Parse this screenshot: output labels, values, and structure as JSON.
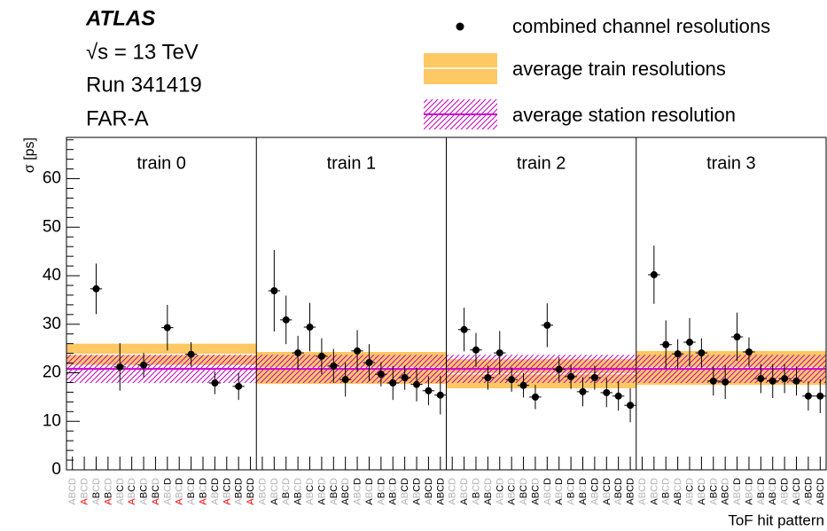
{
  "chart_data": {
    "type": "errorbar",
    "annotations": [
      "ATLAS",
      "√s = 13 TeV",
      "Run 341419",
      "FAR-A"
    ],
    "ylabel": "σ [ps]",
    "xlabel": "ToF hit pattern",
    "ylim": [
      0,
      68.5
    ],
    "yticks": [
      0,
      10,
      20,
      30,
      40,
      50,
      60
    ],
    "yminorticks": [
      2,
      4,
      6,
      8,
      12,
      14,
      16,
      18,
      22,
      24,
      26,
      28,
      32,
      34,
      36,
      38,
      42,
      44,
      46,
      48,
      52,
      54,
      56,
      58,
      62,
      64,
      66,
      68
    ],
    "xlim": [
      -0.5,
      15.5
    ],
    "xticks": [
      0,
      1,
      2,
      3,
      4,
      5,
      6,
      7,
      8,
      9,
      10,
      11,
      12,
      13,
      14,
      15
    ],
    "letters": [
      "A",
      "B",
      "C",
      "D"
    ],
    "letter_colors": {
      "absent": "#b4b4b4",
      "present": "#000000",
      "dead": "#ff0000"
    },
    "points": {
      "name": "combined channel resolutions",
      "color": "#000000"
    },
    "train_band": {
      "name": "average train resolutions",
      "color": "#fec864",
      "line_color": "#ffffff"
    },
    "station_band": {
      "name": "average station resolution",
      "color": "#c000c0",
      "line_color": "#cc00cc",
      "value": 20.8,
      "error": 2.9
    },
    "trains": [
      {
        "name": "train 0",
        "dead": [
          "A"
        ],
        "average": 23.8,
        "average_error": 2.2,
        "x": [
          2,
          4,
          6,
          8,
          10,
          12,
          14
        ],
        "values": [
          37.3,
          21.2,
          21.6,
          29.3,
          23.8,
          17.9,
          17.2
        ],
        "errors": [
          5.2,
          4.9,
          2.5,
          4.7,
          2.5,
          2.3,
          2.8
        ]
      },
      {
        "name": "train 1",
        "dead": [],
        "average": 21.0,
        "average_error": 3.3,
        "x": [
          1,
          2,
          3,
          4,
          5,
          6,
          7,
          8,
          9,
          10,
          11,
          12,
          13,
          14,
          15
        ],
        "values": [
          36.9,
          30.9,
          24.1,
          29.4,
          23.4,
          21.4,
          18.6,
          24.5,
          22.1,
          19.7,
          17.9,
          19.0,
          17.6,
          16.3,
          15.4
        ],
        "errors": [
          8.4,
          5.0,
          3.5,
          5.0,
          3.7,
          3.5,
          3.5,
          4.3,
          3.8,
          2.5,
          3.5,
          2.5,
          3.5,
          3.0,
          4.0
        ]
      },
      {
        "name": "train 2",
        "dead": [],
        "average": 19.8,
        "average_error": 3.0,
        "x": [
          1,
          2,
          3,
          4,
          5,
          6,
          7,
          8,
          9,
          10,
          11,
          12,
          13,
          14,
          15
        ],
        "values": [
          28.9,
          24.7,
          19.0,
          24.1,
          18.6,
          17.4,
          15.0,
          29.8,
          20.7,
          19.2,
          16.1,
          19.0,
          15.9,
          15.2,
          13.3
        ],
        "errors": [
          4.5,
          3.5,
          2.5,
          4.5,
          2.5,
          2.5,
          2.5,
          4.5,
          2.5,
          2.5,
          3.0,
          2.5,
          3.0,
          3.0,
          3.5
        ]
      },
      {
        "name": "train 3",
        "dead": [],
        "average": 21.0,
        "average_error": 3.5,
        "x": [
          1,
          2,
          3,
          4,
          5,
          6,
          7,
          8,
          9,
          10,
          11,
          12,
          13,
          14,
          15
        ],
        "values": [
          40.2,
          25.8,
          23.9,
          26.3,
          24.1,
          18.3,
          18.1,
          27.4,
          24.3,
          18.8,
          18.3,
          18.8,
          18.3,
          15.2,
          15.2
        ],
        "errors": [
          6.0,
          5.0,
          3.0,
          5.0,
          3.0,
          3.0,
          3.5,
          5.0,
          3.0,
          3.0,
          3.5,
          3.0,
          3.0,
          3.0,
          3.5
        ]
      }
    ]
  }
}
